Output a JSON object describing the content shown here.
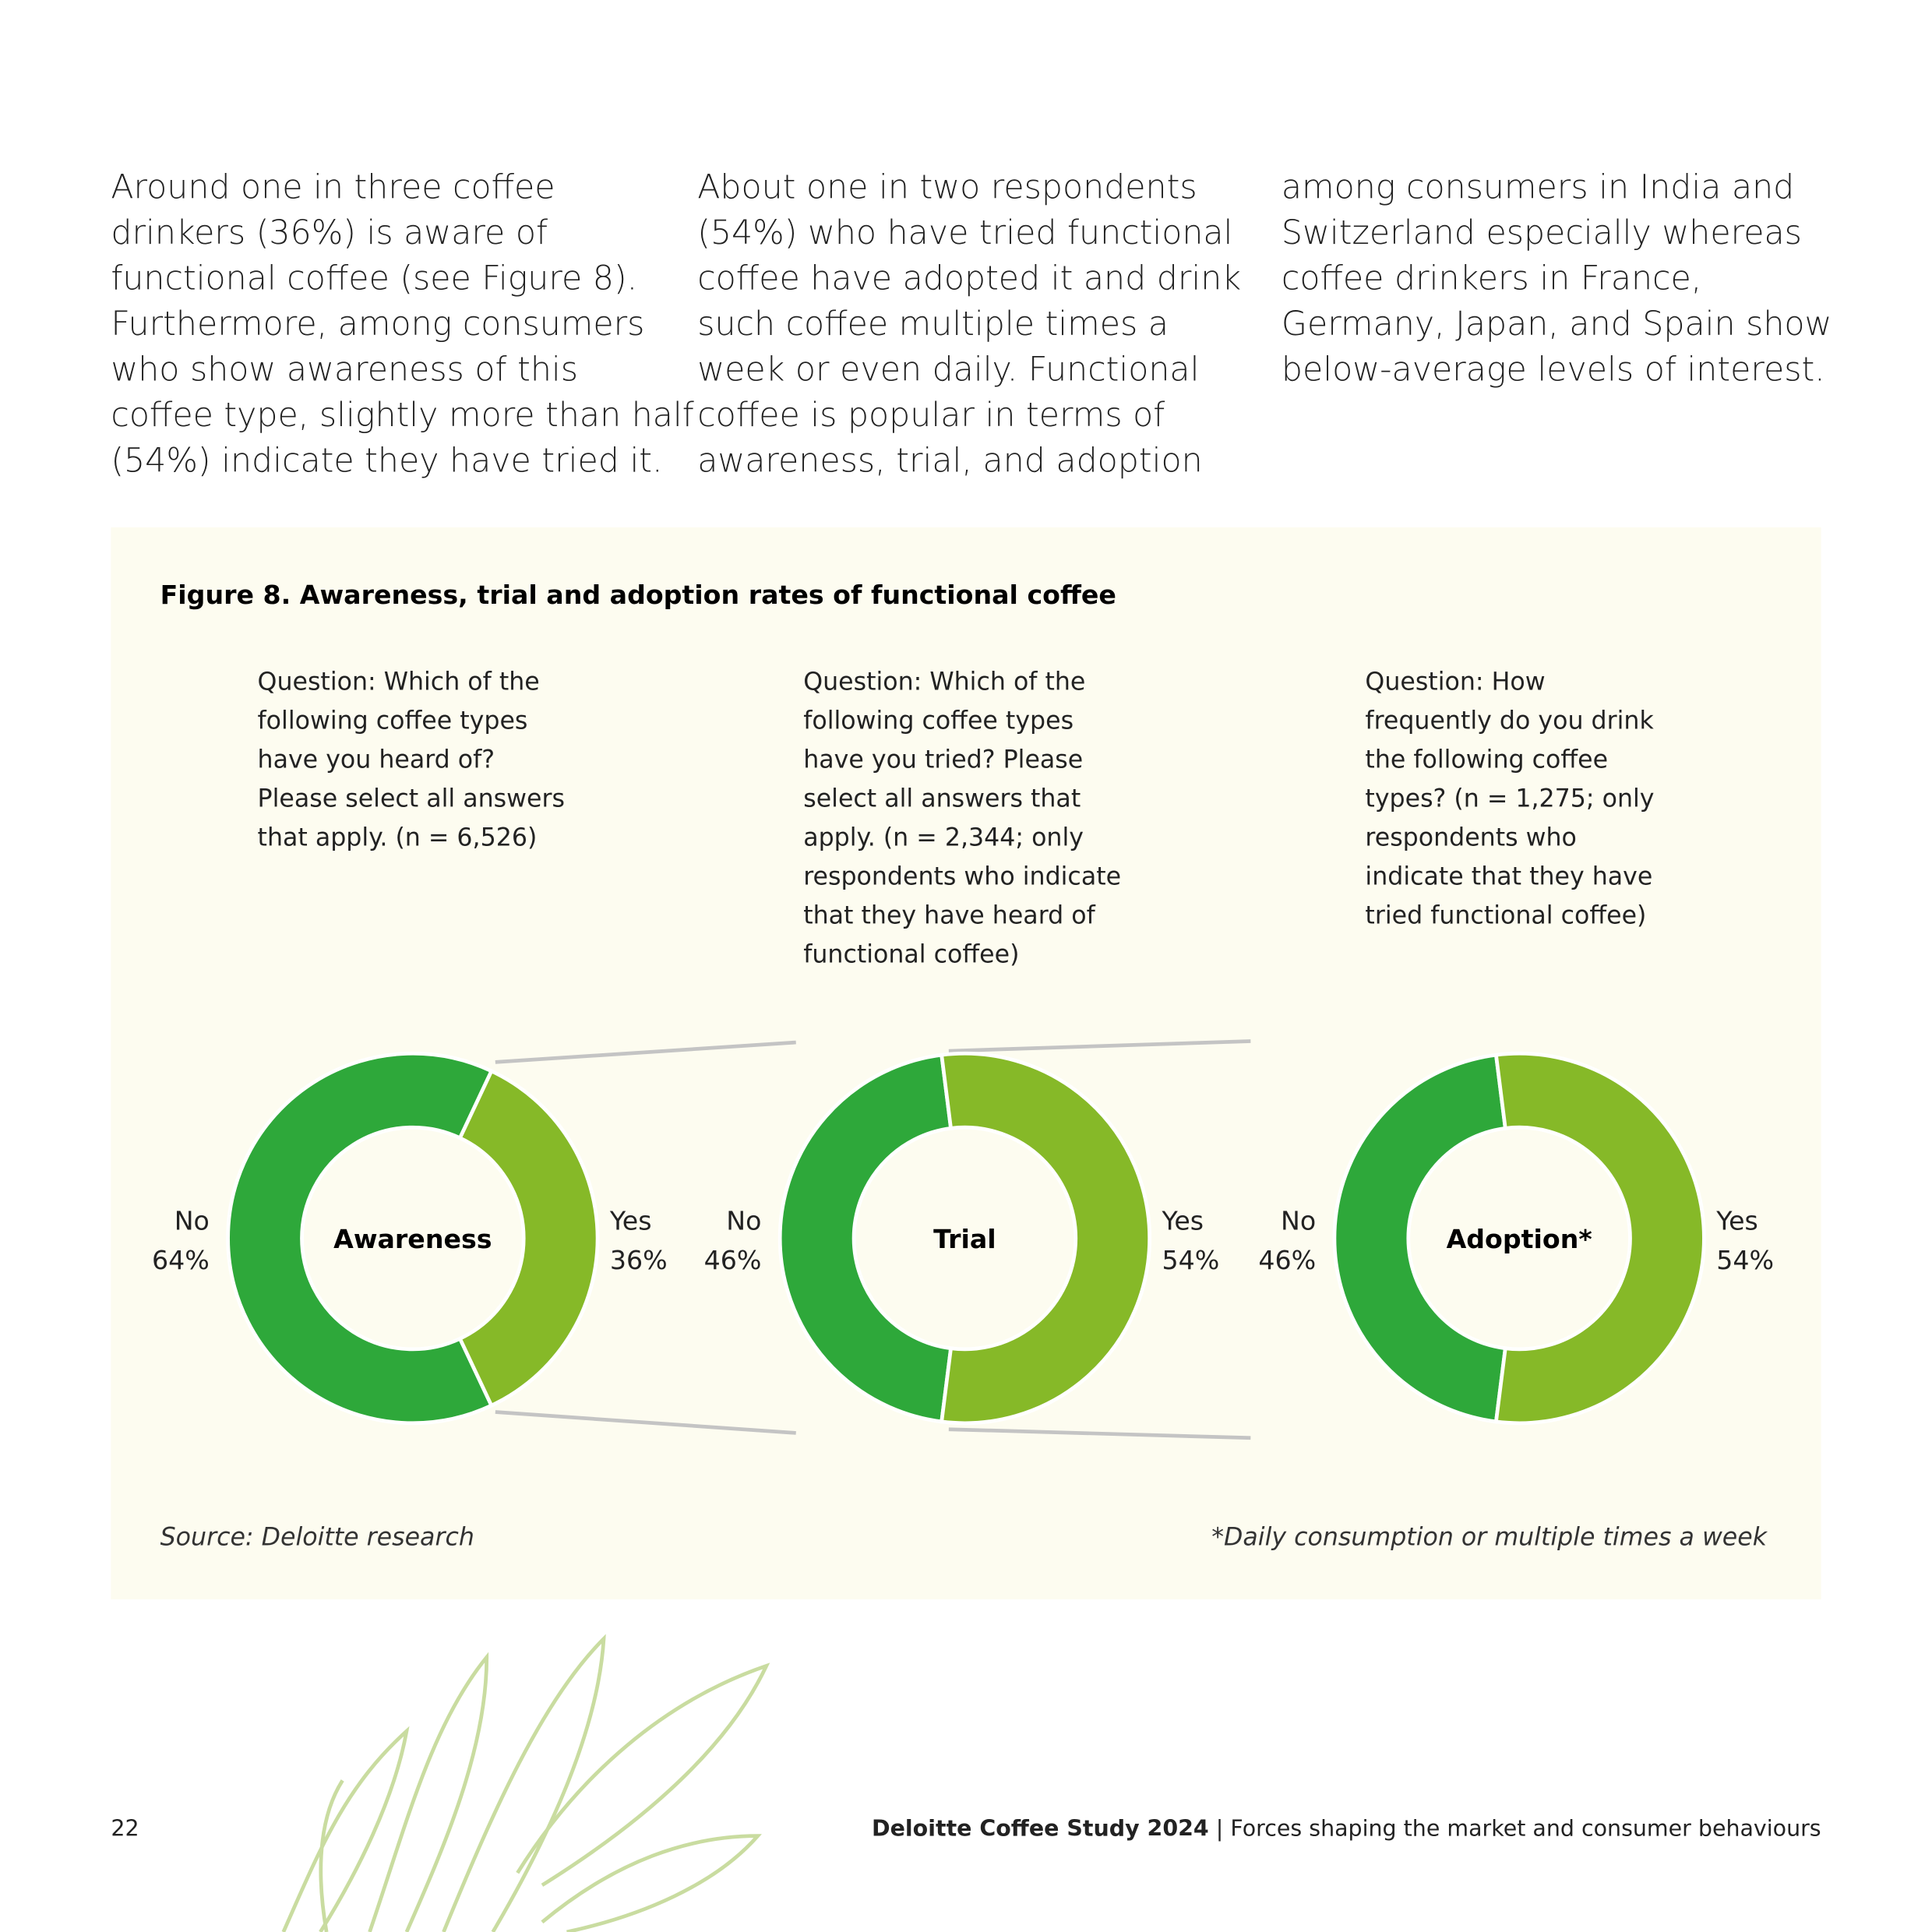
{
  "body_text": [
    [
      "Around one in three coffee",
      "drinkers (36%) is aware of",
      "functional coffee (see Figure 8).",
      "Furthermore, among consumers",
      "who show awareness of this",
      "coffee type, slightly more than half",
      "(54%) indicate they have tried it."
    ],
    [
      "About one in two respondents",
      "(54%) who have tried functional",
      "coffee have adopted it and drink",
      "such coffee multiple times a",
      "week or even daily. Functional",
      "coffee is popular in terms of",
      "awareness, trial, and adoption"
    ],
    [
      "among consumers in India and",
      "Switzerland especially whereas",
      "coffee drinkers in France,",
      "Germany, Japan, and Spain show",
      "below-average levels of interest."
    ]
  ],
  "figure": {
    "title": "Figure 8. Awareness, trial and adoption rates of functional coffee",
    "source": "Source: Deloitte research",
    "note": "*Daily consumption or multiple times a week"
  },
  "chart_data": [
    {
      "type": "pie",
      "center_label": "Awareness",
      "question": [
        "Question: Which of the",
        "following coffee types",
        "have you heard of?",
        "Please select all answers",
        "that apply. (n = 6,526)"
      ],
      "categories": [
        "No",
        "Yes"
      ],
      "values": [
        64,
        36
      ],
      "value_labels": [
        "64%",
        "36%"
      ],
      "colors": [
        "#2ea83a",
        "#86b928"
      ]
    },
    {
      "type": "pie",
      "center_label": "Trial",
      "question": [
        "Question: Which of the",
        "following coffee types",
        "have you tried? Please",
        "select all answers that",
        "apply. (n = 2,344; only",
        "respondents who indicate",
        "that they have heard of",
        "functional coffee)"
      ],
      "categories": [
        "No",
        "Yes"
      ],
      "values": [
        46,
        54
      ],
      "value_labels": [
        "46%",
        "54%"
      ],
      "colors": [
        "#2ea83a",
        "#86b928"
      ]
    },
    {
      "type": "pie",
      "center_label": "Adoption*",
      "question": [
        "Question: How",
        "frequently do you drink",
        "the following coffee",
        "types? (n = 1,275; only",
        "respondents who",
        "indicate that they have",
        "tried functional coffee)"
      ],
      "categories": [
        "No",
        "Yes"
      ],
      "values": [
        46,
        54
      ],
      "value_labels": [
        "46%",
        "54%"
      ],
      "colors": [
        "#2ea83a",
        "#86b928"
      ]
    }
  ],
  "footer": {
    "page": "22",
    "report": "Deloitte Coffee Study 2024",
    "section": "| Forces shaping the market and consumer behaviours"
  }
}
